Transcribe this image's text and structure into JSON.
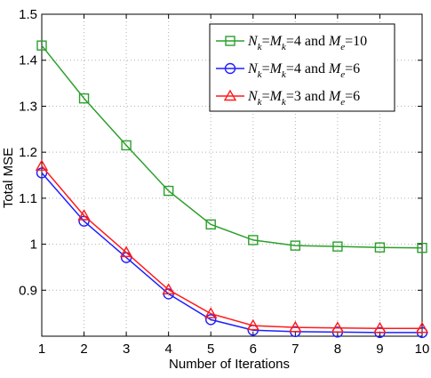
{
  "chart_data": {
    "type": "line",
    "xlabel": "Number of Iterations",
    "ylabel": "Total MSE",
    "xlim": [
      1,
      10
    ],
    "ylim": [
      0.8,
      1.5
    ],
    "xticks": [
      "1",
      "2",
      "3",
      "4",
      "5",
      "6",
      "7",
      "8",
      "9",
      "10"
    ],
    "yticks": [
      "0.9",
      "1",
      "1.1",
      "1.2",
      "1.3",
      "1.4",
      "1.5"
    ],
    "grid": true,
    "legend_position": "top-right",
    "x": [
      1,
      2,
      3,
      4,
      5,
      6,
      7,
      8,
      9,
      10
    ],
    "series": [
      {
        "name": "N_k=M_k=4 and M_e=10",
        "label_parts": {
          "a": "N",
          "b": "k",
          "c": "=",
          "d": "M",
          "e": "k",
          "f": "=4 and ",
          "g": "M",
          "h": "e",
          "i": "=10"
        },
        "color": "#2ca02c",
        "marker": "square",
        "values": [
          1.432,
          1.317,
          1.215,
          1.116,
          1.043,
          1.009,
          0.997,
          0.995,
          0.993,
          0.992
        ]
      },
      {
        "name": "N_k=M_k=4 and M_e=6",
        "label_parts": {
          "a": "N",
          "b": "k",
          "c": "=",
          "d": "M",
          "e": "k",
          "f": "=4 and ",
          "g": "M",
          "h": "e",
          "i": "=6"
        },
        "color": "#1f1fff",
        "marker": "circle",
        "values": [
          1.155,
          1.05,
          0.971,
          0.892,
          0.836,
          0.813,
          0.81,
          0.809,
          0.808,
          0.808
        ]
      },
      {
        "name": "N_k=M_k=3 and M_e=6",
        "label_parts": {
          "a": "N",
          "b": "k",
          "c": "=",
          "d": "M",
          "e": "k",
          "f": "=3 and ",
          "g": "M",
          "h": "e",
          "i": "=6"
        },
        "color": "#ff1a1a",
        "marker": "triangle",
        "values": [
          1.17,
          1.062,
          0.982,
          0.901,
          0.849,
          0.823,
          0.819,
          0.818,
          0.817,
          0.817
        ]
      }
    ]
  }
}
